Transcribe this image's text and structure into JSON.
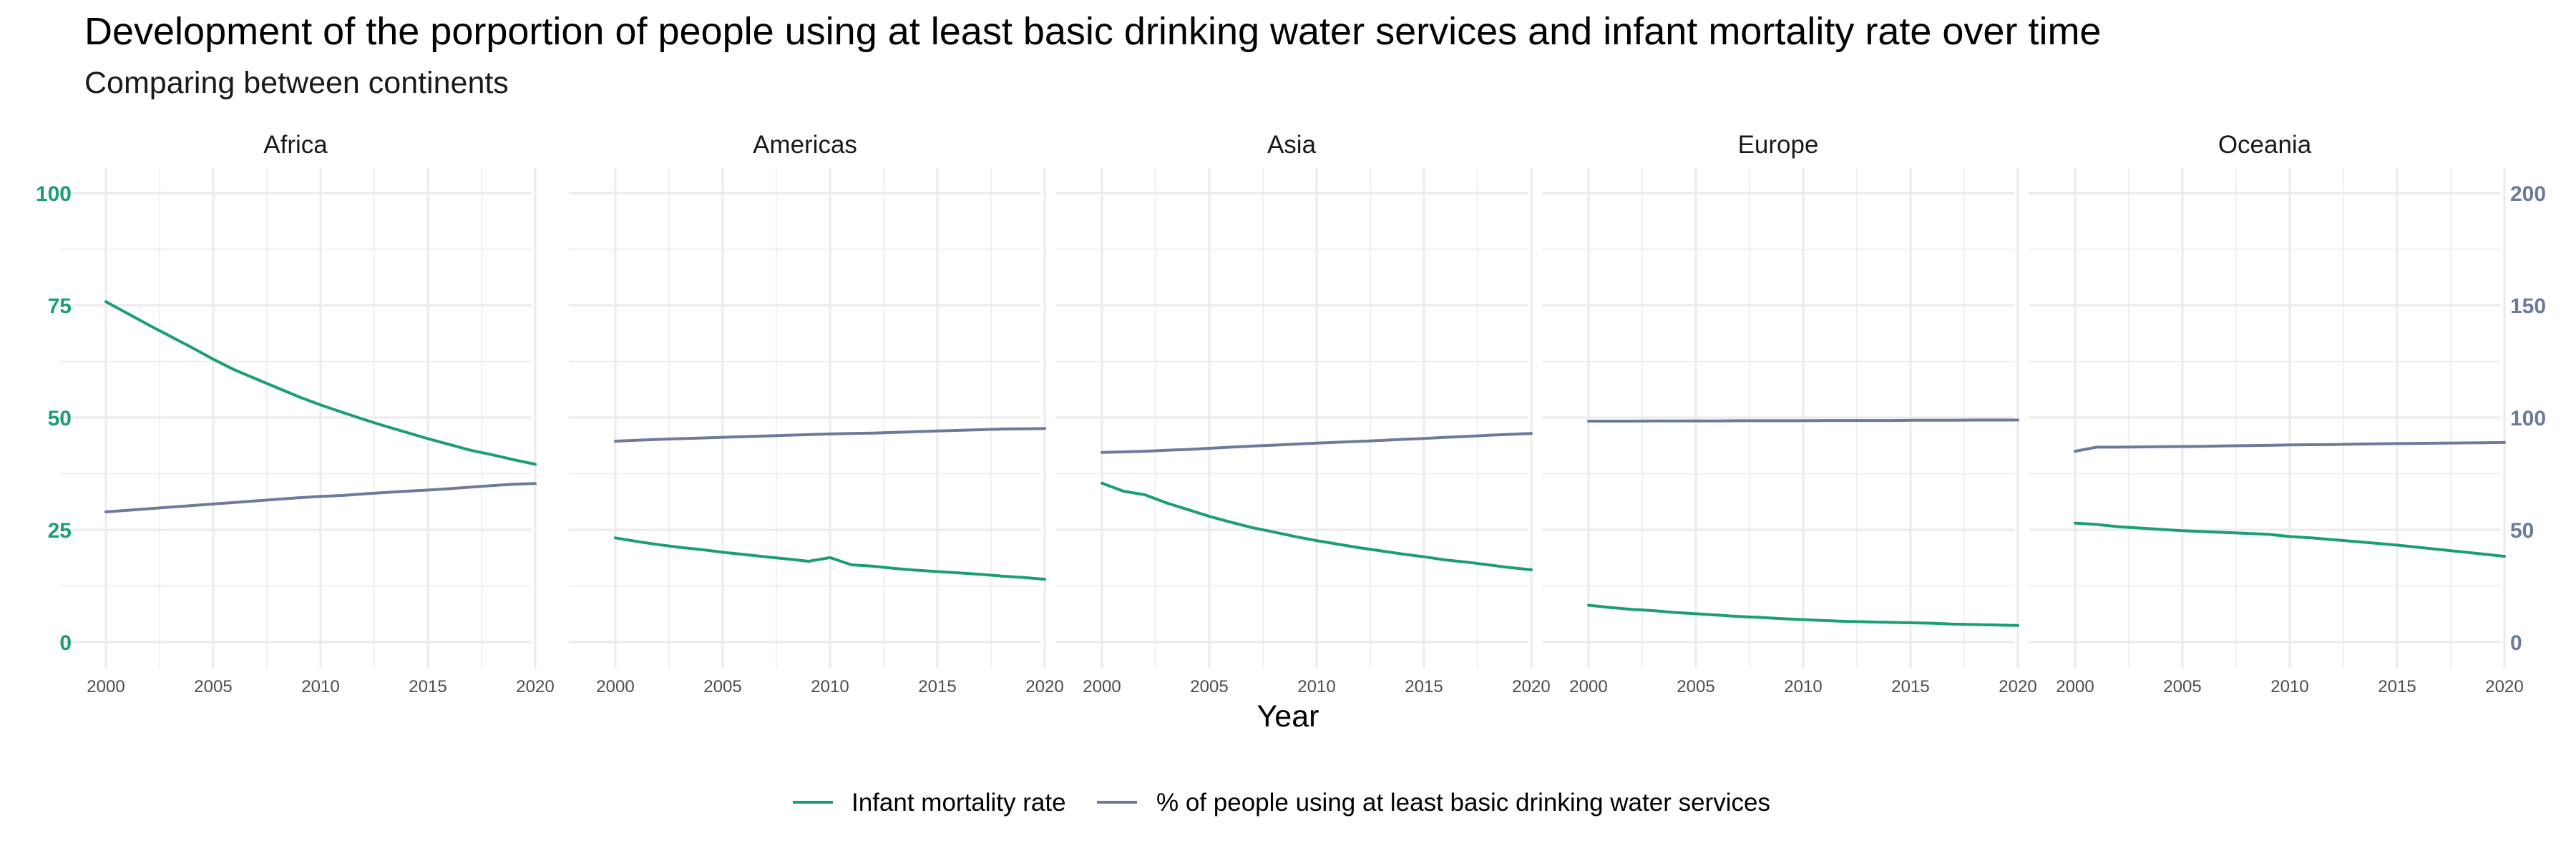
{
  "chart_data": {
    "type": "line",
    "title": "Development of the porportion of people using at least basic drinking water services and infant mortality rate over time",
    "subtitle": "Comparing between continents",
    "xlabel": "Year",
    "ylabel": "",
    "x_ticks": [
      "2000",
      "2005",
      "2010",
      "2015",
      "2020"
    ],
    "xlim": [
      2000,
      2020
    ],
    "y_left": {
      "ticks": [
        "0",
        "25",
        "50",
        "75",
        "100"
      ],
      "ylim": [
        0,
        100
      ],
      "color": "#1b9e77"
    },
    "y_right": {
      "ticks": [
        "0",
        "50",
        "100",
        "150",
        "200"
      ],
      "ylim": [
        0,
        200
      ],
      "color": "#6c7a9c"
    },
    "legend_position": "bottom",
    "grid": true,
    "series_styles": [
      {
        "name": "Infant mortality rate",
        "color": "#1b9e77",
        "axis": "left"
      },
      {
        "name": "% of people using at least basic drinking water services",
        "color": "#6c7a9c",
        "axis": "right"
      }
    ],
    "x": [
      2000,
      2001,
      2002,
      2003,
      2004,
      2005,
      2006,
      2007,
      2008,
      2009,
      2010,
      2011,
      2012,
      2013,
      2014,
      2015,
      2016,
      2017,
      2018,
      2019,
      2020
    ],
    "facets": [
      {
        "panel": "Africa",
        "series": [
          {
            "name": "Infant mortality rate",
            "values": [
              75.8,
              73.2,
              70.6,
              68.1,
              65.6,
              63.0,
              60.6,
              58.6,
              56.6,
              54.6,
              52.8,
              51.2,
              49.6,
              48.1,
              46.7,
              45.3,
              44.0,
              42.7,
              41.7,
              40.6,
              39.6
            ]
          },
          {
            "name": "% of people using at least basic drinking water services",
            "values": [
              58.0,
              58.7,
              59.4,
              60.1,
              60.8,
              61.5,
              62.2,
              62.9,
              63.6,
              64.3,
              64.9,
              65.3,
              66.0,
              66.6,
              67.2,
              67.7,
              68.3,
              69.0,
              69.7,
              70.3,
              70.6
            ]
          }
        ]
      },
      {
        "panel": "Americas",
        "series": [
          {
            "name": "Infant mortality rate",
            "values": [
              23.2,
              22.4,
              21.7,
              21.1,
              20.6,
              20.0,
              19.5,
              19.0,
              18.5,
              18.0,
              18.8,
              17.2,
              16.9,
              16.4,
              16.0,
              15.7,
              15.4,
              15.1,
              14.7,
              14.4,
              14.0
            ]
          },
          {
            "name": "% of people using at least basic drinking water services",
            "values": [
              89.5,
              89.9,
              90.3,
              90.6,
              90.9,
              91.2,
              91.5,
              91.8,
              92.1,
              92.4,
              92.7,
              92.9,
              93.1,
              93.4,
              93.7,
              94.0,
              94.3,
              94.6,
              94.9,
              95.0,
              95.1
            ]
          }
        ]
      },
      {
        "panel": "Asia",
        "series": [
          {
            "name": "Infant mortality rate",
            "values": [
              35.4,
              33.6,
              32.8,
              31.0,
              29.5,
              28.0,
              26.7,
              25.5,
              24.5,
              23.5,
              22.6,
              21.8,
              21.0,
              20.3,
              19.6,
              19.0,
              18.3,
              17.8,
              17.2,
              16.6,
              16.1
            ]
          },
          {
            "name": "% of people using at least basic drinking water services",
            "values": [
              84.5,
              84.7,
              85.0,
              85.4,
              85.8,
              86.3,
              86.8,
              87.3,
              87.7,
              88.2,
              88.6,
              89.0,
              89.4,
              89.8,
              90.3,
              90.7,
              91.2,
              91.6,
              92.1,
              92.5,
              92.9
            ]
          }
        ]
      },
      {
        "panel": "Europe",
        "series": [
          {
            "name": "Infant mortality rate",
            "values": [
              8.2,
              7.7,
              7.3,
              7.0,
              6.6,
              6.3,
              6.0,
              5.7,
              5.5,
              5.2,
              5.0,
              4.8,
              4.6,
              4.5,
              4.4,
              4.3,
              4.2,
              4.0,
              3.9,
              3.8,
              3.7
            ]
          },
          {
            "name": "% of people using at least basic drinking water services",
            "values": [
              98.4,
              98.4,
              98.4,
              98.5,
              98.5,
              98.5,
              98.5,
              98.6,
              98.6,
              98.6,
              98.6,
              98.7,
              98.7,
              98.7,
              98.7,
              98.8,
              98.8,
              98.8,
              98.9,
              98.9,
              98.9
            ]
          }
        ]
      },
      {
        "panel": "Oceania",
        "series": [
          {
            "name": "Infant mortality rate",
            "values": [
              26.5,
              26.2,
              25.7,
              25.4,
              25.1,
              24.8,
              24.6,
              24.4,
              24.2,
              24.0,
              23.5,
              23.2,
              22.8,
              22.4,
              22.0,
              21.6,
              21.1,
              20.6,
              20.1,
              19.6,
              19.1
            ]
          },
          {
            "name": "% of people using at least basic drinking water services",
            "values": [
              85.0,
              86.8,
              86.8,
              86.9,
              87.0,
              87.1,
              87.2,
              87.4,
              87.5,
              87.6,
              87.8,
              87.9,
              88.0,
              88.2,
              88.3,
              88.4,
              88.5,
              88.6,
              88.7,
              88.8,
              88.9
            ]
          }
        ]
      }
    ]
  }
}
